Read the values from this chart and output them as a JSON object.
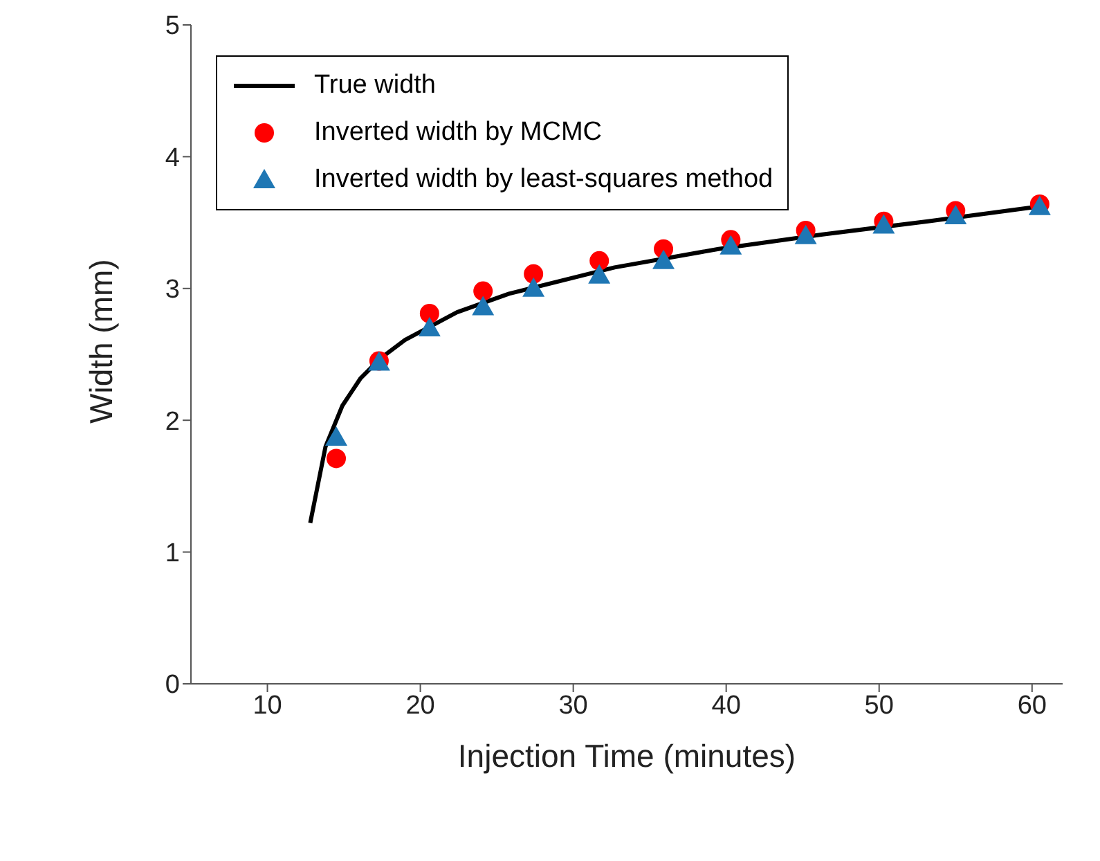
{
  "chart_data": {
    "type": "scatter",
    "xlabel": "Injection Time (minutes)",
    "ylabel": "Width (mm)",
    "xlim": [
      5,
      62
    ],
    "xticks": [
      10,
      20,
      30,
      40,
      50,
      60
    ],
    "ylim": [
      0,
      5
    ],
    "yticks": [
      0,
      1,
      2,
      3,
      4,
      5
    ],
    "grid": false,
    "legend": "top left",
    "series": [
      {
        "name": "True width",
        "type": "line",
        "color": "#000000",
        "marker": "none",
        "line_style": "solid",
        "x": [
          12.8,
          13.8,
          14.9,
          16.1,
          17.4,
          19.0,
          22.4,
          25.8,
          32.7,
          39.5,
          46.3,
          53.2,
          61.0
        ],
        "values": [
          1.22,
          1.8,
          2.11,
          2.32,
          2.47,
          2.61,
          2.82,
          2.96,
          3.16,
          3.3,
          3.41,
          3.51,
          3.63
        ]
      },
      {
        "name": "Inverted width by MCMC",
        "color": "#ff0000",
        "marker": "circle",
        "x": [
          14.5,
          17.3,
          20.6,
          24.1,
          27.4,
          31.7,
          35.9,
          40.3,
          45.2,
          50.3,
          55.0,
          60.5
        ],
        "values": [
          1.71,
          2.45,
          2.81,
          2.98,
          3.11,
          3.21,
          3.3,
          3.37,
          3.44,
          3.51,
          3.59,
          3.64
        ]
      },
      {
        "name": "Inverted width by least-squares method",
        "color": "#1f77b4",
        "marker": "triangle",
        "x": [
          14.5,
          17.3,
          20.6,
          24.1,
          27.4,
          31.7,
          35.9,
          40.3,
          45.2,
          50.3,
          55.0,
          60.5
        ],
        "values": [
          1.87,
          2.44,
          2.7,
          2.86,
          3.0,
          3.1,
          3.21,
          3.32,
          3.4,
          3.48,
          3.55,
          3.62
        ]
      }
    ]
  }
}
